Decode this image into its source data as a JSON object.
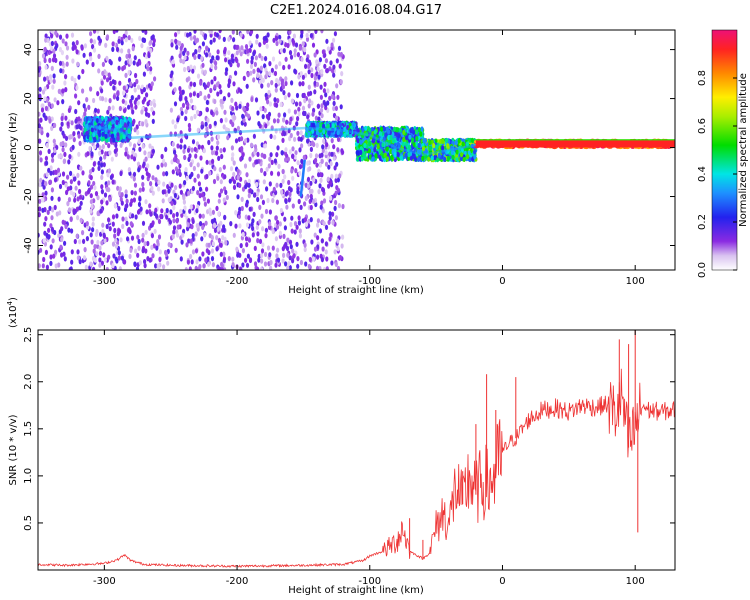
{
  "title": "C2E1.2024.016.08.04.G17",
  "chart_data": [
    {
      "type": "heatmap",
      "xlabel": "Height of straight line (km)",
      "ylabel": "Frequency (Hz)",
      "xlim": [
        -350,
        130
      ],
      "ylim": [
        -50,
        48
      ],
      "x_ticks": [
        -300,
        -200,
        -100,
        0,
        100
      ],
      "y_ticks": [
        -40,
        -20,
        0,
        20,
        40
      ],
      "colorbar": {
        "label": "Normalized spectral amplitude",
        "range": [
          0,
          1
        ],
        "ticks": [
          0.0,
          0.2,
          0.4,
          0.6,
          0.8
        ]
      },
      "features": [
        {
          "x_range": [
            -350,
            -120
          ],
          "y_range": [
            -50,
            48
          ],
          "level": 0.15
        },
        {
          "x_range": [
            -315,
            -280
          ],
          "y_range": [
            3,
            12
          ],
          "level": 0.35
        },
        {
          "x_range": [
            -148,
            -110
          ],
          "y_range": [
            5,
            10
          ],
          "level": 0.4
        },
        {
          "x_range": [
            -110,
            -60
          ],
          "y_range": [
            -5,
            8
          ],
          "level": 0.45
        },
        {
          "x_range": [
            -60,
            -20
          ],
          "y_range": [
            -5,
            3
          ],
          "level": 0.5
        },
        {
          "x_range": [
            -20,
            130
          ],
          "y_range": [
            0,
            3
          ],
          "level": 0.9
        }
      ],
      "ridge": {
        "x": [
          -315,
          -290,
          -280,
          -148,
          -120,
          -100,
          -80,
          -60,
          -40,
          -20,
          0,
          130
        ],
        "y": [
          9,
          7,
          4,
          8,
          7,
          5,
          0,
          -3,
          -1,
          1,
          2,
          1.5
        ]
      }
    },
    {
      "type": "line",
      "xlabel": "Height of straight line (km)",
      "ylabel": "SNR (10 * v/v)",
      "y_multiplier": "(x10",
      "y_multiplier_exp": "4",
      "xlim": [
        -350,
        130
      ],
      "ylim": [
        0,
        2.55
      ],
      "x_ticks": [
        -300,
        -200,
        -100,
        0,
        100
      ],
      "y_ticks": [
        0.5,
        1.0,
        1.5,
        2.0,
        2.5
      ],
      "series": [
        {
          "color": "#ee3333",
          "x": [
            -350,
            -330,
            -300,
            -290,
            -285,
            -280,
            -270,
            -250,
            -200,
            -150,
            -120,
            -105,
            -100,
            -90,
            -80,
            -75,
            -70,
            -60,
            -55,
            -50,
            -45,
            -40,
            -35,
            -30,
            -25,
            -20,
            -15,
            -10,
            -5,
            0,
            5,
            10,
            20,
            30,
            40,
            50,
            60,
            70,
            80,
            85,
            90,
            95,
            100,
            105,
            110,
            120,
            130
          ],
          "y": [
            0.06,
            0.05,
            0.07,
            0.11,
            0.16,
            0.1,
            0.06,
            0.05,
            0.04,
            0.05,
            0.06,
            0.1,
            0.15,
            0.2,
            0.3,
            0.45,
            0.2,
            0.12,
            0.18,
            0.45,
            0.6,
            0.5,
            0.9,
            0.7,
            1.0,
            0.8,
            0.95,
            0.9,
            1.05,
            1.25,
            1.35,
            1.4,
            1.6,
            1.7,
            1.72,
            1.68,
            1.75,
            1.73,
            1.76,
            1.65,
            1.85,
            1.3,
            1.5,
            1.75,
            1.7,
            1.68,
            1.7
          ]
        }
      ],
      "spikes": [
        {
          "x": -70,
          "y": 0.55
        },
        {
          "x": -60,
          "y": 0.32
        },
        {
          "x": -30,
          "y": 1.05
        },
        {
          "x": -20,
          "y": 1.55
        },
        {
          "x": -12,
          "y": 2.08
        },
        {
          "x": -5,
          "y": 1.7
        },
        {
          "x": 10,
          "y": 2.05
        },
        {
          "x": 88,
          "y": 2.45
        },
        {
          "x": 95,
          "y": 2.4
        },
        {
          "x": 100,
          "y": 2.55
        },
        {
          "x": 102,
          "y": 0.4
        }
      ]
    }
  ]
}
